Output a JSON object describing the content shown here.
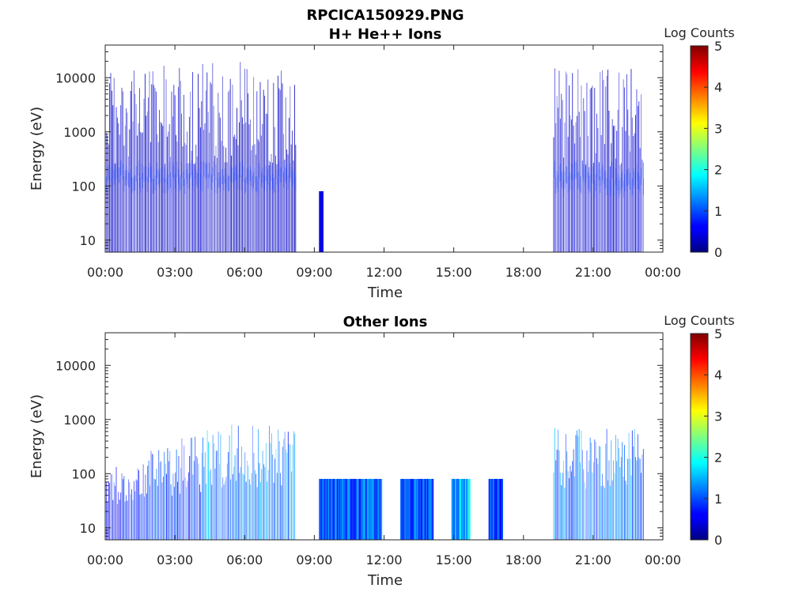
{
  "figure_title": "RPCICA150929.PNG",
  "chart_data": [
    {
      "type": "heatmap",
      "title": "H+ He++ Ions",
      "xlabel": "Time",
      "ylabel": "Energy (eV)",
      "x_ticks": [
        "00:00",
        "03:00",
        "06:00",
        "09:00",
        "12:00",
        "15:00",
        "18:00",
        "21:00",
        "00:00"
      ],
      "x_range_hours": [
        0,
        24
      ],
      "y_scale": "log",
      "y_ticks": [
        10,
        100,
        1000,
        10000
      ],
      "y_tick_labels": [
        "10",
        "100",
        "1000",
        "10000"
      ],
      "ylim": [
        6,
        40000
      ],
      "colorbar": {
        "label": "Log Counts",
        "ticks": [
          "0",
          "1",
          "2",
          "3",
          "4",
          "5"
        ],
        "range": [
          0,
          5
        ],
        "colormap": "jet"
      },
      "activity_blocks": [
        {
          "start_hour": 0.0,
          "end_hour": 8.2,
          "emin": 6,
          "emax": 20000,
          "level": 0.35,
          "dense_band": [
            60,
            300
          ]
        },
        {
          "start_hour": 9.2,
          "end_hour": 9.35,
          "emin": 6,
          "emax": 80,
          "level": 0.4
        },
        {
          "start_hour": 19.3,
          "end_hour": 23.2,
          "emin": 6,
          "emax": 15000,
          "level": 0.4,
          "dense_band": [
            50,
            300
          ]
        }
      ]
    },
    {
      "type": "heatmap",
      "title": "Other Ions",
      "xlabel": "Time",
      "ylabel": "Energy (eV)",
      "x_ticks": [
        "00:00",
        "03:00",
        "06:00",
        "09:00",
        "12:00",
        "15:00",
        "18:00",
        "21:00",
        "00:00"
      ],
      "x_range_hours": [
        0,
        24
      ],
      "y_scale": "log",
      "y_ticks": [
        10,
        100,
        1000,
        10000
      ],
      "y_tick_labels": [
        "10",
        "100",
        "1000",
        "10000"
      ],
      "ylim": [
        6,
        40000
      ],
      "colorbar": {
        "label": "Log Counts",
        "ticks": [
          "0",
          "1",
          "2",
          "3",
          "4",
          "5"
        ],
        "range": [
          0,
          5
        ],
        "colormap": "jet"
      },
      "activity_blocks": [
        {
          "start_hour": 0.0,
          "end_hour": 1.4,
          "emin": 6,
          "emax": 150,
          "level": 0.8
        },
        {
          "start_hour": 1.4,
          "end_hour": 3.3,
          "emin": 6,
          "emax": 300,
          "level": 0.9
        },
        {
          "start_hour": 3.3,
          "end_hour": 4.3,
          "emin": 6,
          "emax": 500,
          "level": 1.0
        },
        {
          "start_hour": 4.3,
          "end_hour": 8.2,
          "emin": 6,
          "emax": 800,
          "level": 1.2
        },
        {
          "start_hour": 9.2,
          "end_hour": 11.9,
          "emin": 6,
          "emax": 80,
          "level": 1.1
        },
        {
          "start_hour": 12.7,
          "end_hour": 14.1,
          "emin": 6,
          "emax": 80,
          "level": 1.0
        },
        {
          "start_hour": 14.9,
          "end_hour": 15.7,
          "emin": 6,
          "emax": 80,
          "level": 1.5
        },
        {
          "start_hour": 16.5,
          "end_hour": 17.1,
          "emin": 6,
          "emax": 80,
          "level": 1.0
        },
        {
          "start_hour": 19.3,
          "end_hour": 23.2,
          "emin": 6,
          "emax": 700,
          "level": 1.2
        }
      ]
    }
  ]
}
